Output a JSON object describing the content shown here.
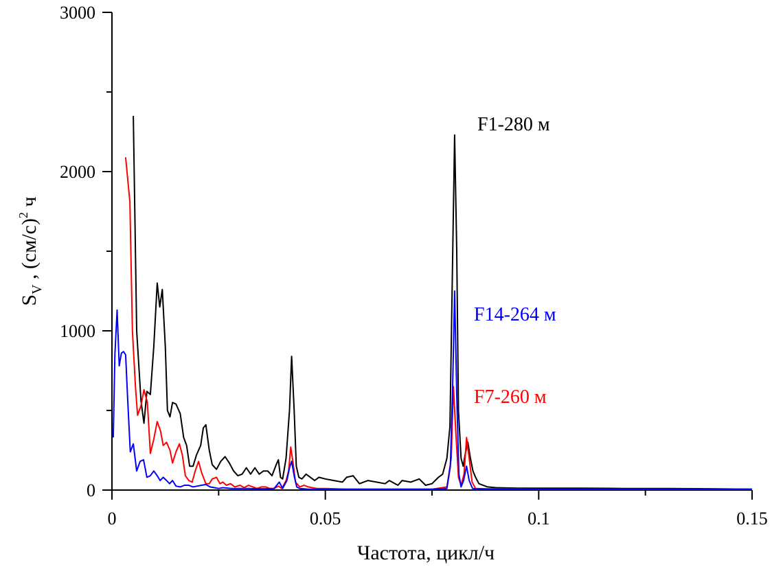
{
  "chart_data": {
    "type": "line",
    "title": "",
    "xlabel": "Частота, цикл/ч",
    "ylabel": {
      "main": "S",
      "sub": "V",
      "rest": " , (см/с)",
      "sup": "2",
      "tail": " ч"
    },
    "xlim": [
      0,
      0.15
    ],
    "ylim": [
      0,
      3000
    ],
    "xticks": [
      0,
      0.05,
      0.1,
      0.15
    ],
    "xtick_labels": [
      "0",
      "0.05",
      "0.1",
      "0.15"
    ],
    "yticks": [
      0,
      1000,
      2000,
      3000
    ],
    "ytick_labels": [
      "0",
      "1000",
      "2000",
      "3000"
    ],
    "grid": false,
    "legend": "inline labels near peaks",
    "series": [
      {
        "name": "F1-280 м",
        "color": "#000000",
        "points": [
          [
            0.005,
            2350
          ],
          [
            0.0058,
            1000
          ],
          [
            0.0068,
            560
          ],
          [
            0.0075,
            420
          ],
          [
            0.0082,
            620
          ],
          [
            0.009,
            600
          ],
          [
            0.0098,
            900
          ],
          [
            0.0106,
            1300
          ],
          [
            0.0112,
            1150
          ],
          [
            0.0118,
            1260
          ],
          [
            0.0125,
            900
          ],
          [
            0.013,
            500
          ],
          [
            0.0136,
            460
          ],
          [
            0.0142,
            550
          ],
          [
            0.015,
            540
          ],
          [
            0.016,
            480
          ],
          [
            0.0168,
            330
          ],
          [
            0.0175,
            280
          ],
          [
            0.0182,
            150
          ],
          [
            0.019,
            150
          ],
          [
            0.0198,
            220
          ],
          [
            0.0208,
            280
          ],
          [
            0.0214,
            390
          ],
          [
            0.022,
            410
          ],
          [
            0.0228,
            250
          ],
          [
            0.0235,
            160
          ],
          [
            0.0245,
            130
          ],
          [
            0.0255,
            180
          ],
          [
            0.0265,
            210
          ],
          [
            0.0275,
            170
          ],
          [
            0.0285,
            120
          ],
          [
            0.0295,
            90
          ],
          [
            0.0305,
            100
          ],
          [
            0.0315,
            140
          ],
          [
            0.0325,
            100
          ],
          [
            0.0335,
            140
          ],
          [
            0.0345,
            100
          ],
          [
            0.0355,
            120
          ],
          [
            0.0365,
            120
          ],
          [
            0.0375,
            90
          ],
          [
            0.0385,
            160
          ],
          [
            0.039,
            190
          ],
          [
            0.0395,
            80
          ],
          [
            0.04,
            70
          ],
          [
            0.0408,
            200
          ],
          [
            0.0416,
            500
          ],
          [
            0.0421,
            840
          ],
          [
            0.0427,
            500
          ],
          [
            0.0432,
            150
          ],
          [
            0.0438,
            80
          ],
          [
            0.0445,
            70
          ],
          [
            0.0455,
            100
          ],
          [
            0.0465,
            80
          ],
          [
            0.0475,
            60
          ],
          [
            0.0485,
            80
          ],
          [
            0.05,
            70
          ],
          [
            0.052,
            60
          ],
          [
            0.054,
            50
          ],
          [
            0.055,
            80
          ],
          [
            0.0565,
            90
          ],
          [
            0.058,
            40
          ],
          [
            0.06,
            60
          ],
          [
            0.062,
            50
          ],
          [
            0.064,
            40
          ],
          [
            0.065,
            60
          ],
          [
            0.067,
            30
          ],
          [
            0.068,
            60
          ],
          [
            0.07,
            50
          ],
          [
            0.072,
            70
          ],
          [
            0.0735,
            30
          ],
          [
            0.075,
            40
          ],
          [
            0.0765,
            80
          ],
          [
            0.0775,
            100
          ],
          [
            0.0785,
            200
          ],
          [
            0.0792,
            400
          ],
          [
            0.0798,
            1400
          ],
          [
            0.0803,
            2230
          ],
          [
            0.0808,
            1500
          ],
          [
            0.0812,
            500
          ],
          [
            0.0818,
            200
          ],
          [
            0.0823,
            150
          ],
          [
            0.0828,
            230
          ],
          [
            0.0834,
            300
          ],
          [
            0.084,
            200
          ],
          [
            0.0846,
            120
          ],
          [
            0.0852,
            80
          ],
          [
            0.086,
            40
          ],
          [
            0.088,
            20
          ],
          [
            0.09,
            15
          ],
          [
            0.095,
            12
          ],
          [
            0.1,
            12
          ],
          [
            0.105,
            12
          ],
          [
            0.11,
            12
          ],
          [
            0.12,
            10
          ],
          [
            0.13,
            10
          ],
          [
            0.14,
            8
          ],
          [
            0.15,
            5
          ]
        ]
      },
      {
        "name": "F7-260 м",
        "color": "#ff0000",
        "points": [
          [
            0.0032,
            2090
          ],
          [
            0.0042,
            1810
          ],
          [
            0.0048,
            1000
          ],
          [
            0.0055,
            650
          ],
          [
            0.006,
            470
          ],
          [
            0.0068,
            530
          ],
          [
            0.0075,
            630
          ],
          [
            0.0083,
            550
          ],
          [
            0.009,
            230
          ],
          [
            0.0098,
            320
          ],
          [
            0.0106,
            430
          ],
          [
            0.0114,
            370
          ],
          [
            0.012,
            280
          ],
          [
            0.0128,
            300
          ],
          [
            0.0136,
            250
          ],
          [
            0.0142,
            170
          ],
          [
            0.015,
            240
          ],
          [
            0.0158,
            290
          ],
          [
            0.0165,
            220
          ],
          [
            0.0172,
            90
          ],
          [
            0.018,
            60
          ],
          [
            0.0188,
            50
          ],
          [
            0.0195,
            120
          ],
          [
            0.0203,
            180
          ],
          [
            0.021,
            110
          ],
          [
            0.022,
            40
          ],
          [
            0.0228,
            40
          ],
          [
            0.0235,
            70
          ],
          [
            0.0245,
            80
          ],
          [
            0.0253,
            40
          ],
          [
            0.026,
            50
          ],
          [
            0.0268,
            30
          ],
          [
            0.0278,
            40
          ],
          [
            0.0288,
            20
          ],
          [
            0.03,
            30
          ],
          [
            0.031,
            15
          ],
          [
            0.032,
            30
          ],
          [
            0.033,
            20
          ],
          [
            0.034,
            10
          ],
          [
            0.035,
            20
          ],
          [
            0.036,
            20
          ],
          [
            0.037,
            10
          ],
          [
            0.038,
            10
          ],
          [
            0.039,
            25
          ],
          [
            0.0398,
            10
          ],
          [
            0.0408,
            60
          ],
          [
            0.0414,
            120
          ],
          [
            0.0419,
            270
          ],
          [
            0.0424,
            180
          ],
          [
            0.043,
            50
          ],
          [
            0.044,
            20
          ],
          [
            0.045,
            30
          ],
          [
            0.046,
            20
          ],
          [
            0.048,
            10
          ],
          [
            0.05,
            10
          ],
          [
            0.055,
            5
          ],
          [
            0.06,
            5
          ],
          [
            0.07,
            5
          ],
          [
            0.075,
            5
          ],
          [
            0.0785,
            20
          ],
          [
            0.0795,
            200
          ],
          [
            0.08,
            650
          ],
          [
            0.0806,
            350
          ],
          [
            0.0812,
            80
          ],
          [
            0.0818,
            30
          ],
          [
            0.0825,
            100
          ],
          [
            0.0831,
            330
          ],
          [
            0.0837,
            200
          ],
          [
            0.0844,
            50
          ],
          [
            0.0852,
            10
          ],
          [
            0.088,
            8
          ],
          [
            0.09,
            8
          ],
          [
            0.1,
            5
          ],
          [
            0.11,
            5
          ],
          [
            0.12,
            5
          ],
          [
            0.13,
            5
          ],
          [
            0.14,
            5
          ],
          [
            0.15,
            5
          ]
        ]
      },
      {
        "name": "F14-264 м",
        "color": "#0000ff",
        "points": [
          [
            0.0003,
            330
          ],
          [
            0.0007,
            850
          ],
          [
            0.0012,
            1130
          ],
          [
            0.0017,
            780
          ],
          [
            0.0022,
            860
          ],
          [
            0.0027,
            870
          ],
          [
            0.0032,
            850
          ],
          [
            0.0037,
            560
          ],
          [
            0.0043,
            240
          ],
          [
            0.005,
            290
          ],
          [
            0.0058,
            120
          ],
          [
            0.0066,
            180
          ],
          [
            0.0074,
            190
          ],
          [
            0.0082,
            80
          ],
          [
            0.009,
            90
          ],
          [
            0.0098,
            120
          ],
          [
            0.0106,
            90
          ],
          [
            0.0113,
            60
          ],
          [
            0.012,
            80
          ],
          [
            0.0128,
            60
          ],
          [
            0.0135,
            40
          ],
          [
            0.0142,
            60
          ],
          [
            0.015,
            25
          ],
          [
            0.016,
            20
          ],
          [
            0.017,
            30
          ],
          [
            0.018,
            30
          ],
          [
            0.019,
            20
          ],
          [
            0.02,
            25
          ],
          [
            0.021,
            30
          ],
          [
            0.022,
            35
          ],
          [
            0.023,
            20
          ],
          [
            0.024,
            15
          ],
          [
            0.025,
            10
          ],
          [
            0.026,
            15
          ],
          [
            0.028,
            10
          ],
          [
            0.03,
            10
          ],
          [
            0.032,
            10
          ],
          [
            0.034,
            8
          ],
          [
            0.036,
            8
          ],
          [
            0.038,
            10
          ],
          [
            0.0392,
            50
          ],
          [
            0.04,
            10
          ],
          [
            0.041,
            60
          ],
          [
            0.0416,
            140
          ],
          [
            0.0421,
            180
          ],
          [
            0.0427,
            90
          ],
          [
            0.0433,
            20
          ],
          [
            0.044,
            10
          ],
          [
            0.046,
            5
          ],
          [
            0.048,
            5
          ],
          [
            0.05,
            5
          ],
          [
            0.055,
            5
          ],
          [
            0.06,
            5
          ],
          [
            0.065,
            5
          ],
          [
            0.07,
            5
          ],
          [
            0.075,
            5
          ],
          [
            0.0785,
            10
          ],
          [
            0.0793,
            150
          ],
          [
            0.0798,
            600
          ],
          [
            0.0803,
            1250
          ],
          [
            0.0808,
            600
          ],
          [
            0.0813,
            100
          ],
          [
            0.0818,
            20
          ],
          [
            0.0824,
            60
          ],
          [
            0.0831,
            150
          ],
          [
            0.0837,
            60
          ],
          [
            0.0845,
            10
          ],
          [
            0.087,
            5
          ],
          [
            0.09,
            5
          ],
          [
            0.1,
            5
          ],
          [
            0.11,
            5
          ],
          [
            0.12,
            5
          ],
          [
            0.13,
            5
          ],
          [
            0.14,
            5
          ],
          [
            0.15,
            5
          ]
        ]
      }
    ]
  }
}
